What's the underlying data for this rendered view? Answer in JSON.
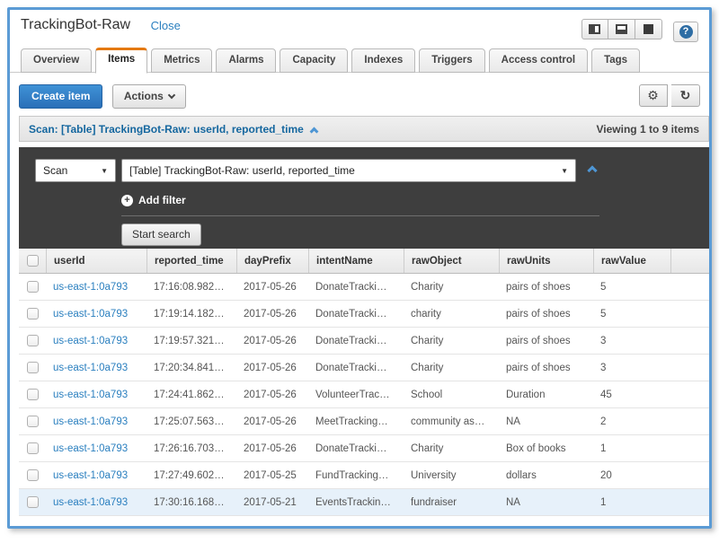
{
  "window": {
    "title": "TrackingBot-Raw",
    "close_label": "Close",
    "help_glyph": "?"
  },
  "tabs": [
    {
      "label": "Overview",
      "active": false
    },
    {
      "label": "Items",
      "active": true
    },
    {
      "label": "Metrics",
      "active": false
    },
    {
      "label": "Alarms",
      "active": false
    },
    {
      "label": "Capacity",
      "active": false
    },
    {
      "label": "Indexes",
      "active": false
    },
    {
      "label": "Triggers",
      "active": false
    },
    {
      "label": "Access control",
      "active": false
    },
    {
      "label": "Tags",
      "active": false
    }
  ],
  "toolbar": {
    "create_item_label": "Create item",
    "actions_label": "Actions",
    "gear_glyph": "⚙",
    "refresh_glyph": "↻"
  },
  "scan_bar": {
    "summary": "Scan: [Table] TrackingBot-Raw: userId, reported_time",
    "viewing": "Viewing 1 to 9 items"
  },
  "filter_panel": {
    "operation_selected": "Scan",
    "target_selected": "[Table] TrackingBot-Raw: userId, reported_time",
    "add_filter_label": "Add filter",
    "start_search_label": "Start search"
  },
  "table": {
    "columns": [
      "userId",
      "reported_time",
      "dayPrefix",
      "intentName",
      "rawObject",
      "rawUnits",
      "rawValue"
    ],
    "rows": [
      [
        "us-east-1:0a793",
        "17:16:08.982…",
        "2017-05-26",
        "DonateTracki…",
        "Charity",
        "pairs of shoes",
        "5"
      ],
      [
        "us-east-1:0a793",
        "17:19:14.182…",
        "2017-05-26",
        "DonateTracki…",
        "charity",
        "pairs of shoes",
        "5"
      ],
      [
        "us-east-1:0a793",
        "17:19:57.321…",
        "2017-05-26",
        "DonateTracki…",
        "Charity",
        "pairs of shoes",
        "3"
      ],
      [
        "us-east-1:0a793",
        "17:20:34.841…",
        "2017-05-26",
        "DonateTracki…",
        "Charity",
        "pairs of shoes",
        "3"
      ],
      [
        "us-east-1:0a793",
        "17:24:41.862…",
        "2017-05-26",
        "VolunteerTrac…",
        "School",
        "Duration",
        "45"
      ],
      [
        "us-east-1:0a793",
        "17:25:07.563…",
        "2017-05-26",
        "MeetTracking…",
        "community as…",
        "NA",
        "2"
      ],
      [
        "us-east-1:0a793",
        "17:26:16.703…",
        "2017-05-26",
        "DonateTracki…",
        "Charity",
        "Box of books",
        "1"
      ],
      [
        "us-east-1:0a793",
        "17:27:49.602…",
        "2017-05-25",
        "FundTracking…",
        "University",
        "dollars",
        "20"
      ],
      [
        "us-east-1:0a793",
        "17:30:16.168…",
        "2017-05-21",
        "EventsTrackin…",
        "fundraiser",
        "NA",
        "1"
      ]
    ],
    "highlighted_row_index": 8
  },
  "colors": {
    "window_border": "#5b9bd5",
    "tab_active_accent": "#e47911",
    "primary_button": "#2f7dc0",
    "panel_dark": "#3e3e3e",
    "link": "#2a7fbf",
    "row_highlight": "#e7f1fa"
  }
}
